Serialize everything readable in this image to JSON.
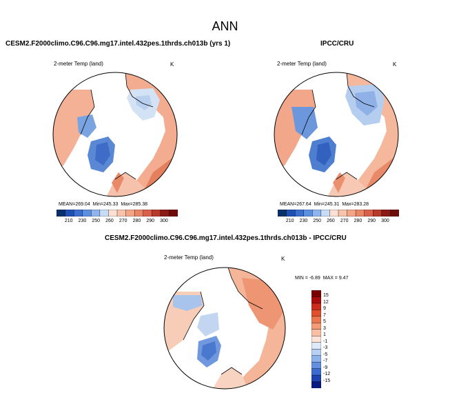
{
  "page": {
    "title": "ANN"
  },
  "colors": {
    "land_warm": "#f2a98c",
    "land_mid": "#f7c8b2",
    "land_hot": "#e27a5a",
    "ice_blue": "#5b8fd6",
    "ice_light": "#c9dcf2",
    "ocean": "#ffffff"
  },
  "chart_data": [
    {
      "type": "heatmap",
      "panel": "model",
      "title": "CESM2.F2000climo.C96.C96.mg17.intel.432pes.1thrds.ch013b (yrs 1)",
      "variable": "2-meter Temp (land)",
      "units": "K",
      "projection": "north polar stereographic",
      "stats": {
        "mean_label": "MEAN=",
        "mean": "269.04",
        "min_label": "Min=",
        "min": "245.33",
        "max_label": "Max=",
        "max": "285.38"
      },
      "colorbar": {
        "orientation": "horizontal",
        "levels": [
          "210",
          "230",
          "250",
          "260",
          "270",
          "280",
          "290",
          "300"
        ],
        "colors": [
          "#08306b",
          "#1e50b4",
          "#3a6fd0",
          "#5b8fe0",
          "#8fb4ee",
          "#c6dcf7",
          "#fbe0d3",
          "#f7c3aa",
          "#f3a586",
          "#ea8566",
          "#d9604a",
          "#b83a2a",
          "#8b1a14",
          "#6e0a0a"
        ]
      }
    },
    {
      "type": "heatmap",
      "panel": "obs",
      "title": "IPCC/CRU",
      "variable": "2-meter Temp (land)",
      "units": "K",
      "projection": "north polar stereographic",
      "stats": {
        "mean_label": "MEAN=",
        "mean": "267.64",
        "min_label": "Min=",
        "min": "245.31",
        "max_label": "Max=",
        "max": "283.28"
      },
      "colorbar": {
        "orientation": "horizontal",
        "levels": [
          "210",
          "230",
          "250",
          "260",
          "270",
          "280",
          "290",
          "300"
        ],
        "colors": [
          "#08306b",
          "#1e50b4",
          "#3a6fd0",
          "#5b8fe0",
          "#8fb4ee",
          "#c6dcf7",
          "#fbe0d3",
          "#f7c3aa",
          "#f3a586",
          "#ea8566",
          "#d9604a",
          "#b83a2a",
          "#8b1a14",
          "#6e0a0a"
        ]
      }
    },
    {
      "type": "heatmap",
      "panel": "diff",
      "title": "CESM2.F2000climo.C96.C96.mg17.intel.432pes.1thrds.ch013b - IPCC/CRU",
      "variable": "2-meter Temp (land)",
      "units": "K",
      "projection": "north polar stereographic",
      "stats": {
        "min_label": "MIN =",
        "min": "-6.89",
        "max_label": "MAX =",
        "max": "9.47"
      },
      "colorbar": {
        "orientation": "vertical",
        "levels": [
          "15",
          "12",
          "9",
          "7",
          "5",
          "3",
          "1",
          "-1",
          "-3",
          "-5",
          "-7",
          "-9",
          "-12",
          "-15"
        ],
        "colors": [
          "#7a0000",
          "#a80c0c",
          "#cc2a1a",
          "#e0502e",
          "#ec7650",
          "#f39a78",
          "#f8bfa4",
          "#fde3d6",
          "#dde8f8",
          "#b8d0f4",
          "#8eb2ec",
          "#6390e0",
          "#3d6bd0",
          "#1e44b0",
          "#081a80"
        ]
      }
    }
  ]
}
